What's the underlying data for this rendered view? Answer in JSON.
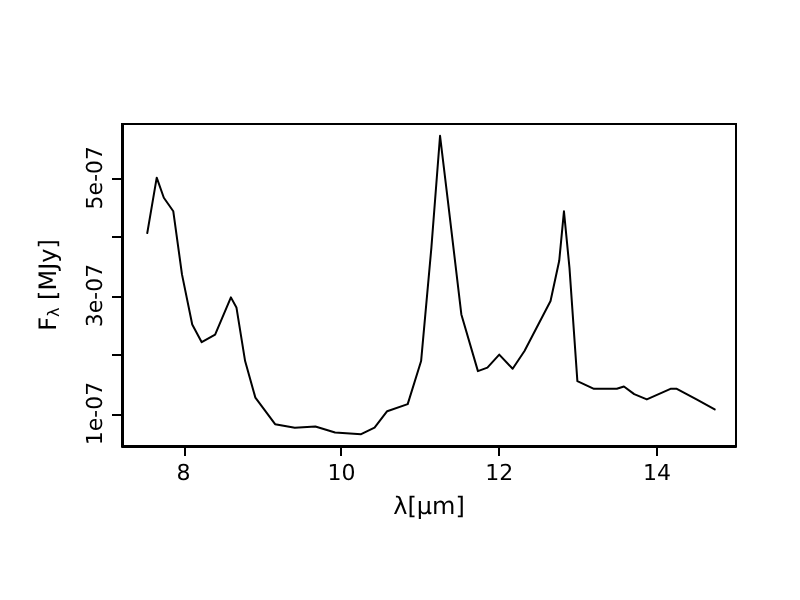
{
  "chart_data": {
    "type": "line",
    "xlabel": "λ[μm]",
    "ylabel": "F$_{λ}$ [MJy]",
    "x": [
      7.54,
      7.66,
      7.75,
      7.87,
      7.98,
      8.11,
      8.23,
      8.4,
      8.6,
      8.67,
      8.78,
      8.91,
      9.16,
      9.41,
      9.67,
      9.92,
      10.25,
      10.42,
      10.58,
      10.84,
      11.01,
      11.14,
      11.25,
      11.35,
      11.52,
      11.73,
      11.85,
      12.0,
      12.17,
      12.32,
      12.65,
      12.76,
      12.82,
      12.89,
      12.99,
      13.2,
      13.49,
      13.58,
      13.71,
      13.87,
      14.17,
      14.25,
      14.5,
      14.73
    ],
    "series": [
      {
        "color": "#000000",
        "values": [
          4.06e-07,
          5e-07,
          4.66e-07,
          4.43e-07,
          3.36e-07,
          2.51e-07,
          2.21e-07,
          2.34e-07,
          2.97e-07,
          2.8e-07,
          1.89e-07,
          1.27e-07,
          8.2e-08,
          7.6e-08,
          7.8e-08,
          6.8e-08,
          6.5e-08,
          7.6e-08,
          1.04e-07,
          1.16e-07,
          1.89e-07,
          3.81e-07,
          5.71e-07,
          4.6e-07,
          2.68e-07,
          1.72e-07,
          1.78e-07,
          2e-07,
          1.76e-07,
          2.06e-07,
          2.91e-07,
          3.59e-07,
          4.43e-07,
          3.47e-07,
          1.55e-07,
          1.42e-07,
          1.42e-07,
          1.46e-07,
          1.33e-07,
          1.24e-07,
          1.42e-07,
          1.42e-07,
          1.24e-07,
          1.07e-07
        ]
      }
    ],
    "xlim": [
      7.22,
      15.0
    ],
    "xticks": [
      8,
      10,
      12,
      14
    ],
    "ylim": [
      4.5e-08,
      5.91e-07
    ],
    "yticks": [
      {
        "value": 1e-07,
        "label": "1e-07"
      },
      {
        "value": 2e-07,
        "label": null
      },
      {
        "value": 3e-07,
        "label": "3e-07"
      },
      {
        "value": 4e-07,
        "label": null
      },
      {
        "value": 5e-07,
        "label": "5e-07"
      }
    ],
    "grid": false,
    "marker": "none",
    "line_style": "solid"
  }
}
